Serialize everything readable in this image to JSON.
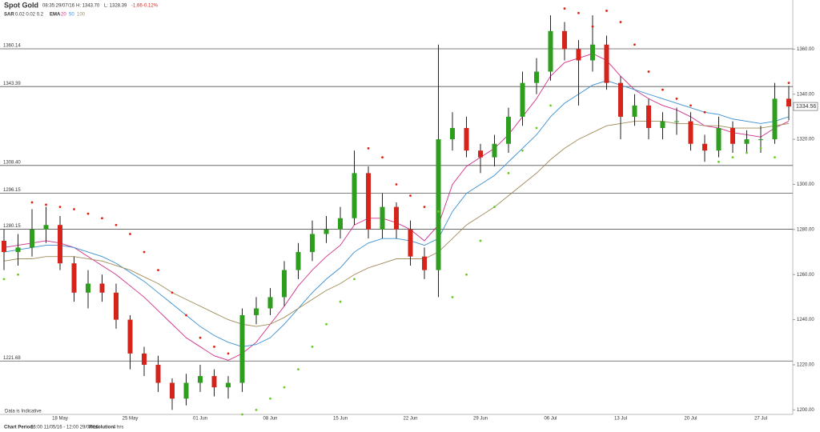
{
  "chart_data": {
    "type": "candlestick",
    "title": "Spot Gold",
    "timestamp": "08:35:29/07/16",
    "high_label": "H: 1343.70",
    "low_label": "L: 1328.39",
    "change": "-1.66",
    "change_pct": "-0.12%",
    "sar_name": "SAR",
    "sar_params": "0.02 0.02 0.2",
    "ema_name": "EMA",
    "note": "Data is Indicative",
    "footer": {
      "period_label": "Chart Period:",
      "period": "16:00 11/05/16 - 12:00 29/07/16",
      "resolution_label": "Resolution:",
      "resolution": "4 hrs"
    },
    "categories": [
      null,
      null,
      null,
      null,
      "18 May",
      null,
      null,
      null,
      null,
      "25 May",
      null,
      null,
      null,
      null,
      "01 Jun",
      null,
      null,
      null,
      null,
      "08 Jun",
      null,
      null,
      null,
      null,
      "15 Jun",
      null,
      null,
      null,
      null,
      "22 Jun",
      null,
      null,
      null,
      null,
      "29 Jun",
      null,
      null,
      null,
      null,
      "06 Jul",
      null,
      null,
      null,
      null,
      "13 Jul",
      null,
      null,
      null,
      null,
      "20 Jul",
      null,
      null,
      null,
      null,
      "27 Jul",
      null,
      null
    ],
    "open": [
      1275,
      1270,
      1272,
      1280,
      1282,
      1265,
      1252,
      1256,
      1252,
      1240,
      1225,
      1220,
      1212,
      1205,
      1212,
      1215,
      1210,
      1212,
      1242,
      1245,
      1250,
      1262,
      1270,
      1278,
      1280,
      1285,
      1305,
      1280,
      1290,
      1280,
      1268,
      1262,
      1320,
      1325,
      1315,
      1312,
      1318,
      1330,
      1345,
      1350,
      1368,
      1360,
      1355,
      1362,
      1345,
      1330,
      1335,
      1325,
      1328,
      1328,
      1318,
      1315,
      1325,
      1318,
      1320,
      1320,
      1338
    ],
    "high": [
      1280,
      1278,
      1289,
      1290,
      1286,
      1268,
      1262,
      1260,
      1256,
      1242,
      1228,
      1224,
      1214,
      1216,
      1220,
      1218,
      1215,
      1245,
      1250,
      1254,
      1266,
      1274,
      1284,
      1286,
      1290,
      1315,
      1308,
      1296,
      1292,
      1284,
      1272,
      1362,
      1332,
      1330,
      1318,
      1322,
      1334,
      1350,
      1356,
      1375,
      1372,
      1364,
      1375,
      1366,
      1348,
      1340,
      1338,
      1332,
      1334,
      1332,
      1322,
      1330,
      1328,
      1324,
      1326,
      1345,
      1343.7
    ],
    "low": [
      1262,
      1264,
      1268,
      1274,
      1262,
      1248,
      1245,
      1248,
      1236,
      1218,
      1215,
      1208,
      1200,
      1202,
      1208,
      1206,
      1205,
      1208,
      1238,
      1242,
      1246,
      1258,
      1266,
      1274,
      1276,
      1282,
      1276,
      1276,
      1276,
      1264,
      1258,
      1250,
      1315,
      1312,
      1305,
      1308,
      1314,
      1326,
      1340,
      1346,
      1355,
      1335,
      1350,
      1342,
      1320,
      1326,
      1320,
      1320,
      1322,
      1315,
      1310,
      1312,
      1314,
      1314,
      1314,
      1318,
      1328.39
    ],
    "close": [
      1270,
      1272,
      1280,
      1282,
      1265,
      1252,
      1256,
      1252,
      1240,
      1225,
      1220,
      1212,
      1205,
      1212,
      1215,
      1210,
      1212,
      1242,
      1245,
      1250,
      1262,
      1270,
      1278,
      1280,
      1285,
      1305,
      1280,
      1290,
      1280,
      1268,
      1262,
      1320,
      1325,
      1315,
      1312,
      1318,
      1330,
      1345,
      1350,
      1368,
      1360,
      1355,
      1362,
      1345,
      1330,
      1335,
      1325,
      1328,
      1328,
      1318,
      1315,
      1325,
      1318,
      1320,
      1320,
      1338,
      1334.56
    ],
    "up_color": "#2e9e1e",
    "down_color": "#d4241c",
    "series": [
      {
        "name": "20",
        "color": "#d0308a",
        "values": [
          1272,
          1273,
          1274,
          1275,
          1274,
          1272,
          1268,
          1264,
          1260,
          1255,
          1250,
          1244,
          1238,
          1232,
          1228,
          1224,
          1222,
          1225,
          1230,
          1238,
          1246,
          1255,
          1262,
          1268,
          1273,
          1282,
          1285,
          1285,
          1283,
          1280,
          1275,
          1282,
          1300,
          1308,
          1312,
          1316,
          1322,
          1330,
          1338,
          1348,
          1354,
          1356,
          1358,
          1355,
          1348,
          1342,
          1338,
          1335,
          1333,
          1330,
          1326,
          1325,
          1323,
          1322,
          1321,
          1325,
          1328
        ]
      },
      {
        "name": "50",
        "color": "#3a8fd0",
        "values": [
          1270,
          1271,
          1272,
          1273,
          1273,
          1272,
          1270,
          1268,
          1265,
          1261,
          1257,
          1252,
          1247,
          1242,
          1237,
          1233,
          1230,
          1228,
          1229,
          1232,
          1238,
          1245,
          1252,
          1258,
          1263,
          1270,
          1274,
          1276,
          1276,
          1275,
          1273,
          1276,
          1288,
          1296,
          1300,
          1304,
          1310,
          1316,
          1322,
          1330,
          1336,
          1340,
          1344,
          1346,
          1344,
          1342,
          1340,
          1338,
          1336,
          1334,
          1332,
          1331,
          1329,
          1328,
          1327,
          1328,
          1330
        ]
      },
      {
        "name": "100",
        "color": "#a08c5a",
        "values": [
          1266,
          1267,
          1267,
          1268,
          1268,
          1268,
          1267,
          1266,
          1264,
          1262,
          1259,
          1256,
          1252,
          1249,
          1246,
          1243,
          1240,
          1238,
          1237,
          1238,
          1241,
          1245,
          1249,
          1253,
          1256,
          1260,
          1263,
          1265,
          1267,
          1267,
          1267,
          1270,
          1276,
          1282,
          1286,
          1290,
          1295,
          1300,
          1305,
          1311,
          1316,
          1320,
          1323,
          1326,
          1327,
          1328,
          1328,
          1328,
          1327,
          1327,
          1326,
          1326,
          1325,
          1325,
          1325,
          1326,
          1327
        ]
      }
    ],
    "sar": [
      1258,
      1260,
      1292,
      1291,
      1290,
      1289,
      1287,
      1285,
      1282,
      1278,
      1270,
      1262,
      1252,
      1242,
      1232,
      1228,
      1225,
      1198,
      1200,
      1205,
      1210,
      1218,
      1228,
      1238,
      1248,
      1258,
      1316,
      1312,
      1300,
      1295,
      1290,
      1288,
      1250,
      1260,
      1275,
      1290,
      1305,
      1315,
      1325,
      1335,
      1378,
      1376,
      1370,
      1377,
      1372,
      1362,
      1350,
      1342,
      1338,
      1335,
      1332,
      1310,
      1312,
      1314,
      1316,
      1312,
      1345
    ],
    "sar_up_color": "#66cc22",
    "sar_down_color": "#e02010",
    "levels": [
      1360.14,
      1343.39,
      {
        "value": 1308.4,
        "label": "1308.40"
      },
      1296.15,
      1280.15,
      1221.68
    ],
    "ylim": [
      1198,
      1380
    ],
    "yticks": [
      {
        "value": 1200,
        "label": "1200.00"
      },
      {
        "value": 1220,
        "label": "1220.00"
      },
      {
        "value": 1240,
        "label": "1240.00"
      },
      {
        "value": 1260,
        "label": "1260.00"
      },
      {
        "value": 1280,
        "label": "1280.00"
      },
      {
        "value": 1300,
        "label": "1300.00"
      },
      {
        "value": 1320,
        "label": "1320.00"
      },
      {
        "value": 1340,
        "label": "1340.00"
      },
      {
        "value": 1360,
        "label": "1360.00"
      }
    ]
  }
}
